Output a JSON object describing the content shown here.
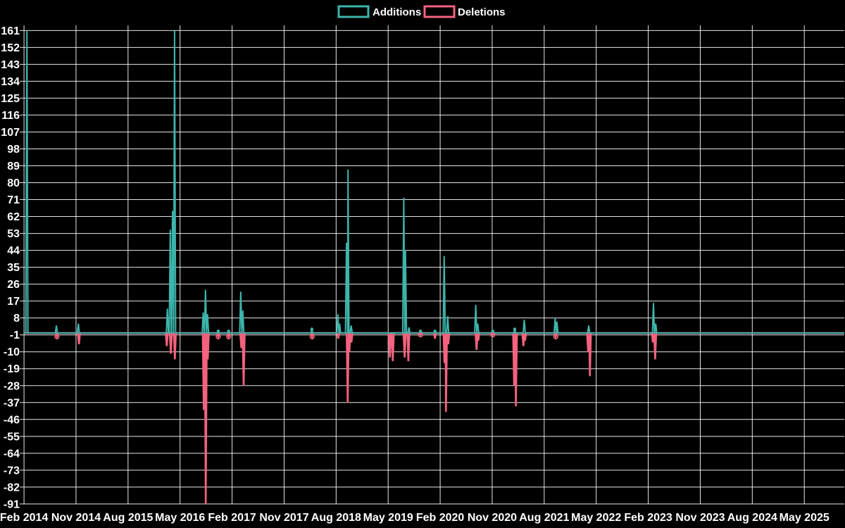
{
  "legend": {
    "items": [
      {
        "label": "Additions",
        "color": "#3CB5AC"
      },
      {
        "label": "Deletions",
        "color": "#F4627E"
      }
    ]
  },
  "chart_data": {
    "type": "line",
    "title": "",
    "xlabel": "",
    "ylabel": "",
    "background_color": "#000000",
    "grid_color": "#ffffff",
    "text_color": "#ffffff",
    "baseline_value": 0,
    "x_axis": {
      "start": "2014-02",
      "end": "2025-05",
      "months_per_tick": 9,
      "tick_labels": [
        "Feb 2014",
        "Nov 2014",
        "Aug 2015",
        "May 2016",
        "Feb 2017",
        "Nov 2017",
        "Aug 2018",
        "May 2019",
        "Feb 2020",
        "Nov 2020",
        "Aug 2021",
        "May 2022",
        "Feb 2023",
        "Nov 2023",
        "Aug 2024",
        "May 2025"
      ]
    },
    "y_axis": {
      "min": -91,
      "max": 161,
      "tick_step": 9
    },
    "series": [
      {
        "name": "Additions",
        "color": "#3CB5AC",
        "events": [
          {
            "m": 0.5,
            "date": "2014-02",
            "value": 161
          },
          {
            "m": 5.6,
            "date": "2014-07",
            "value": 4
          },
          {
            "m": 9.4,
            "date": "2014-11",
            "value": 5
          },
          {
            "m": 24.8,
            "date": "2016-02",
            "value": 13
          },
          {
            "m": 25.3,
            "date": "2016-03",
            "value": 55
          },
          {
            "m": 25.7,
            "date": "2016-03",
            "value": 65
          },
          {
            "m": 26.05,
            "date": "2016-04",
            "value": 161
          },
          {
            "m": 31.0,
            "date": "2016-09",
            "value": 11
          },
          {
            "m": 31.4,
            "date": "2016-09",
            "value": 23
          },
          {
            "m": 31.75,
            "date": "2016-10",
            "value": 10
          },
          {
            "m": 33.6,
            "date": "2016-11",
            "value": 1
          },
          {
            "m": 35.4,
            "date": "2017-01",
            "value": 1
          },
          {
            "m": 37.5,
            "date": "2017-03",
            "value": 22
          },
          {
            "m": 37.85,
            "date": "2017-03",
            "value": 12
          },
          {
            "m": 49.8,
            "date": "2018-04",
            "value": 2
          },
          {
            "m": 54.3,
            "date": "2018-08",
            "value": 10
          },
          {
            "m": 54.6,
            "date": "2018-08",
            "value": 5
          },
          {
            "m": 55.8,
            "date": "2018-09",
            "value": 48
          },
          {
            "m": 56.05,
            "date": "2018-10",
            "value": 87
          },
          {
            "m": 56.6,
            "date": "2018-10",
            "value": 4
          },
          {
            "m": 65.7,
            "date": "2019-07",
            "value": 72
          },
          {
            "m": 66.0,
            "date": "2019-08",
            "value": 44
          },
          {
            "m": 66.6,
            "date": "2019-08",
            "value": 3
          },
          {
            "m": 68.6,
            "date": "2019-10",
            "value": 1
          },
          {
            "m": 71.1,
            "date": "2020-01",
            "value": 1
          },
          {
            "m": 72.7,
            "date": "2020-02",
            "value": 41
          },
          {
            "m": 73.3,
            "date": "2020-03",
            "value": 9
          },
          {
            "m": 78.15,
            "date": "2020-08",
            "value": 15
          },
          {
            "m": 78.5,
            "date": "2020-08",
            "value": 5
          },
          {
            "m": 81.1,
            "date": "2020-11",
            "value": 1
          },
          {
            "m": 84.9,
            "date": "2021-03",
            "value": 2
          },
          {
            "m": 86.55,
            "date": "2021-04",
            "value": 7
          },
          {
            "m": 91.9,
            "date": "2021-10",
            "value": 8
          },
          {
            "m": 92.2,
            "date": "2021-10",
            "value": 6
          },
          {
            "m": 97.7,
            "date": "2022-03",
            "value": 4
          },
          {
            "m": 108.9,
            "date": "2023-03",
            "value": 16
          },
          {
            "m": 109.3,
            "date": "2023-03",
            "value": 5
          }
        ]
      },
      {
        "name": "Deletions",
        "color": "#F4627E",
        "events": [
          {
            "m": 5.7,
            "date": "2014-07",
            "value": -2
          },
          {
            "m": 9.5,
            "date": "2014-11",
            "value": -6
          },
          {
            "m": 24.7,
            "date": "2016-02",
            "value": -7
          },
          {
            "m": 25.4,
            "date": "2016-03",
            "value": -11
          },
          {
            "m": 26.1,
            "date": "2016-04",
            "value": -14
          },
          {
            "m": 31.1,
            "date": "2016-09",
            "value": -41
          },
          {
            "m": 31.45,
            "date": "2016-09",
            "value": -91
          },
          {
            "m": 31.8,
            "date": "2016-10",
            "value": -14
          },
          {
            "m": 33.6,
            "date": "2016-11",
            "value": -2
          },
          {
            "m": 35.4,
            "date": "2017-01",
            "value": -2
          },
          {
            "m": 37.6,
            "date": "2017-03",
            "value": -8
          },
          {
            "m": 38.0,
            "date": "2017-04",
            "value": -28
          },
          {
            "m": 49.85,
            "date": "2018-04",
            "value": -2
          },
          {
            "m": 54.35,
            "date": "2018-08",
            "value": -3
          },
          {
            "m": 56.0,
            "date": "2018-10",
            "value": -37
          },
          {
            "m": 56.3,
            "date": "2018-10",
            "value": -10
          },
          {
            "m": 56.65,
            "date": "2018-10",
            "value": -5
          },
          {
            "m": 63.3,
            "date": "2019-05",
            "value": -13
          },
          {
            "m": 63.8,
            "date": "2019-05",
            "value": -15
          },
          {
            "m": 65.85,
            "date": "2019-07",
            "value": -13
          },
          {
            "m": 66.5,
            "date": "2019-08",
            "value": -15
          },
          {
            "m": 68.6,
            "date": "2019-10",
            "value": -1
          },
          {
            "m": 71.1,
            "date": "2020-01",
            "value": -3
          },
          {
            "m": 72.75,
            "date": "2020-02",
            "value": -16
          },
          {
            "m": 73.0,
            "date": "2020-03",
            "value": -42
          },
          {
            "m": 73.4,
            "date": "2020-03",
            "value": -6
          },
          {
            "m": 78.3,
            "date": "2020-08",
            "value": -9
          },
          {
            "m": 78.6,
            "date": "2020-08",
            "value": -4
          },
          {
            "m": 81.1,
            "date": "2020-11",
            "value": -1
          },
          {
            "m": 84.8,
            "date": "2021-03",
            "value": -28
          },
          {
            "m": 85.1,
            "date": "2021-03",
            "value": -39
          },
          {
            "m": 86.4,
            "date": "2021-04",
            "value": -7
          },
          {
            "m": 86.7,
            "date": "2021-04",
            "value": -4
          },
          {
            "m": 92.0,
            "date": "2021-10",
            "value": -2
          },
          {
            "m": 97.6,
            "date": "2022-03",
            "value": -10
          },
          {
            "m": 97.9,
            "date": "2022-03",
            "value": -23
          },
          {
            "m": 108.8,
            "date": "2023-03",
            "value": -5
          },
          {
            "m": 109.2,
            "date": "2023-03",
            "value": -14
          }
        ]
      }
    ]
  }
}
